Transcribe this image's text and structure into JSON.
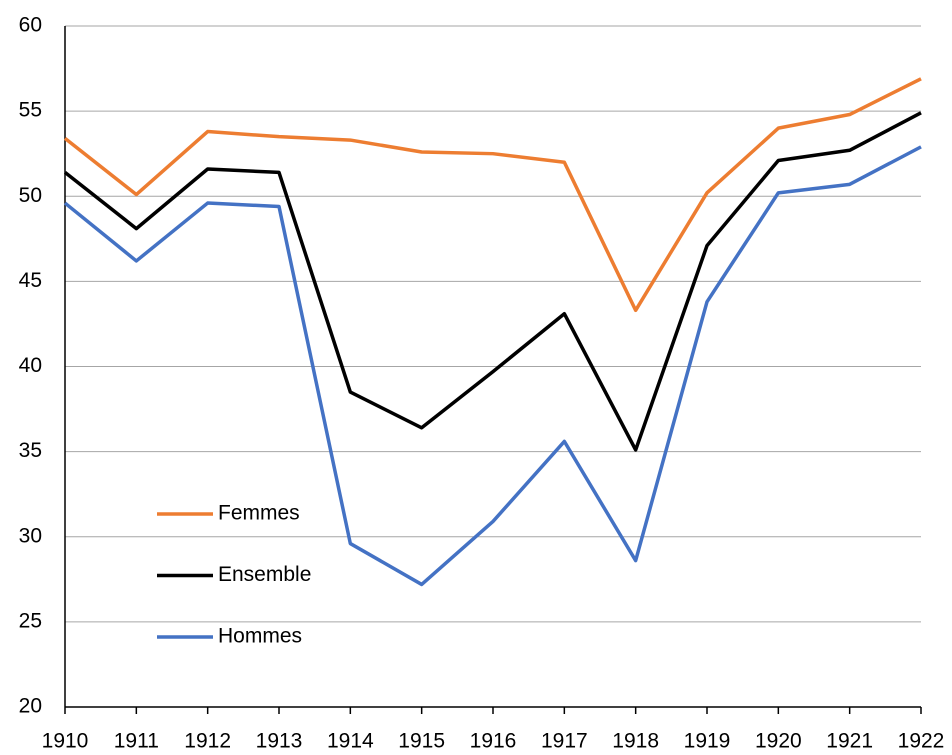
{
  "chart_data": {
    "type": "line",
    "x": [
      1910,
      1911,
      1912,
      1913,
      1914,
      1915,
      1916,
      1917,
      1918,
      1919,
      1920,
      1921,
      1922
    ],
    "xlim": [
      1910,
      1922
    ],
    "xticks": [
      1910,
      1911,
      1912,
      1913,
      1914,
      1915,
      1916,
      1917,
      1918,
      1919,
      1920,
      1921,
      1922
    ],
    "ylim": [
      20,
      60
    ],
    "yticks": [
      20,
      25,
      30,
      35,
      40,
      45,
      50,
      55,
      60
    ],
    "grid": true,
    "legend": "left",
    "series": [
      {
        "name": "Femmes",
        "color": "#ed7d31",
        "values": [
          53.4,
          50.1,
          53.8,
          53.5,
          53.3,
          52.6,
          52.5,
          52.0,
          43.3,
          50.2,
          54.0,
          54.8,
          56.9
        ]
      },
      {
        "name": "Ensemble",
        "color": "#000000",
        "values": [
          51.4,
          48.1,
          51.6,
          51.4,
          38.5,
          36.4,
          39.7,
          43.1,
          35.1,
          47.1,
          52.1,
          52.7,
          54.9
        ]
      },
      {
        "name": "Hommes",
        "color": "#4472c4",
        "values": [
          49.6,
          46.2,
          49.6,
          49.4,
          29.6,
          27.2,
          30.9,
          35.6,
          28.6,
          43.8,
          50.2,
          50.7,
          52.9
        ]
      }
    ]
  }
}
